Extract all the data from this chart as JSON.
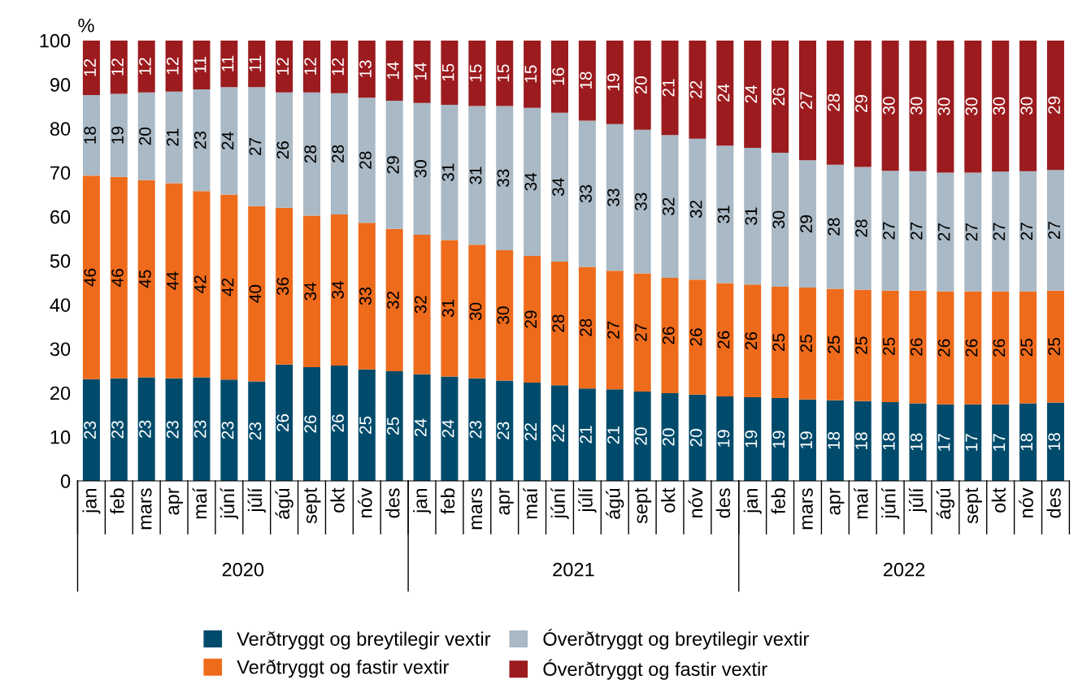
{
  "chart_data": {
    "type": "bar",
    "stacked": true,
    "ylabel": "%",
    "categories": [
      "jan",
      "feb",
      "mars",
      "apr",
      "maí",
      "júní",
      "júlí",
      "ágú",
      "sept",
      "okt",
      "nóv",
      "des",
      "jan",
      "feb",
      "mars",
      "apr",
      "maí",
      "júní",
      "júlí",
      "ágú",
      "sept",
      "okt",
      "nóv",
      "des",
      "jan",
      "feb",
      "mars",
      "apr",
      "maí",
      "júní",
      "júlí",
      "ágú",
      "sept",
      "okt",
      "nóv",
      "des"
    ],
    "annotations": [
      "2020",
      "2021",
      "2022"
    ],
    "ylim": [
      0,
      100
    ],
    "yticks": [
      0,
      10,
      20,
      30,
      40,
      50,
      60,
      70,
      80,
      90,
      100
    ],
    "grid": false,
    "legend": "bottom",
    "series": [
      {
        "name": "Verðtryggt og breytilegir vextir",
        "color": "#004b6b",
        "values": [
          23.1,
          23.3,
          23.5,
          23.3,
          23.5,
          23.0,
          22.6,
          26.4,
          25.8,
          26.2,
          25.3,
          24.9,
          24.2,
          23.7,
          23.3,
          22.8,
          22.3,
          21.7,
          21.0,
          20.8,
          20.3,
          19.9,
          19.6,
          19.2,
          19.0,
          18.8,
          18.5,
          18.3,
          18.1,
          17.9,
          17.6,
          17.4,
          17.4,
          17.4,
          17.6,
          17.8
        ],
        "value_labels": [
          "23",
          "23",
          "23",
          "23",
          "23",
          "23",
          "23",
          "26",
          "26",
          "26",
          "25",
          "25",
          "24",
          "24",
          "23",
          "23",
          "22",
          "22",
          "21",
          "21",
          "20",
          "20",
          "20",
          "19",
          "19",
          "19",
          "19",
          "18",
          "18",
          "18",
          "18",
          "17",
          "17",
          "17",
          "18",
          "18"
        ]
      },
      {
        "name": "Verðtryggt og fastir vextir",
        "color": "#ee6b1b",
        "values": [
          46.2,
          45.7,
          44.8,
          44.3,
          42.3,
          42.0,
          39.8,
          35.6,
          34.4,
          34.3,
          33.3,
          32.3,
          31.7,
          31.0,
          30.3,
          29.6,
          28.8,
          28.1,
          27.6,
          26.9,
          26.8,
          26.2,
          26.1,
          25.7,
          25.6,
          25.3,
          25.4,
          25.3,
          25.3,
          25.3,
          25.6,
          25.6,
          25.6,
          25.6,
          25.4,
          25.4
        ],
        "value_labels": [
          "46",
          "46",
          "45",
          "44",
          "42",
          "42",
          "40",
          "36",
          "34",
          "34",
          "33",
          "32",
          "32",
          "31",
          "30",
          "30",
          "29",
          "28",
          "28",
          "27",
          "27",
          "26",
          "26",
          "26",
          "26",
          "25",
          "25",
          "25",
          "25",
          "25",
          "26",
          "26",
          "26",
          "26",
          "25",
          "25"
        ]
      },
      {
        "name": "Óverðtryggt og breytilegir vextir",
        "color": "#a9b9c5",
        "values": [
          18.3,
          18.9,
          19.9,
          20.8,
          23.1,
          24.4,
          27.0,
          26.2,
          28.0,
          27.5,
          28.4,
          29.1,
          29.9,
          30.7,
          31.5,
          32.7,
          33.6,
          33.8,
          33.2,
          33.3,
          32.6,
          32.4,
          32.0,
          31.2,
          31.0,
          30.4,
          28.9,
          28.2,
          27.9,
          27.2,
          27.1,
          27.0,
          27.0,
          27.2,
          27.3,
          27.4
        ],
        "value_labels": [
          "18",
          "19",
          "20",
          "21",
          "23",
          "24",
          "27",
          "26",
          "28",
          "28",
          "28",
          "29",
          "30",
          "31",
          "31",
          "33",
          "34",
          "34",
          "33",
          "33",
          "33",
          "32",
          "32",
          "31",
          "31",
          "30",
          "29",
          "28",
          "28",
          "27",
          "27",
          "27",
          "27",
          "27",
          "27",
          "27"
        ]
      },
      {
        "name": "Óverðtryggt og fastir vextir",
        "color": "#9b1b1e",
        "values": [
          12.4,
          12.1,
          11.8,
          11.6,
          11.1,
          10.6,
          10.6,
          11.8,
          11.8,
          12.0,
          13.0,
          13.7,
          14.2,
          14.6,
          14.9,
          14.9,
          15.3,
          16.4,
          18.2,
          19.0,
          20.3,
          21.5,
          22.3,
          23.9,
          24.4,
          25.5,
          27.2,
          28.2,
          28.7,
          29.6,
          29.7,
          30.0,
          30.0,
          29.8,
          29.7,
          29.4
        ],
        "value_labels": [
          "12",
          "12",
          "12",
          "12",
          "11",
          "11",
          "11",
          "12",
          "12",
          "12",
          "13",
          "14",
          "14",
          "15",
          "15",
          "15",
          "15",
          "16",
          "18",
          "19",
          "20",
          "21",
          "22",
          "24",
          "24",
          "26",
          "27",
          "28",
          "29",
          "30",
          "30",
          "30",
          "30",
          "30",
          "30",
          "29"
        ]
      }
    ]
  }
}
